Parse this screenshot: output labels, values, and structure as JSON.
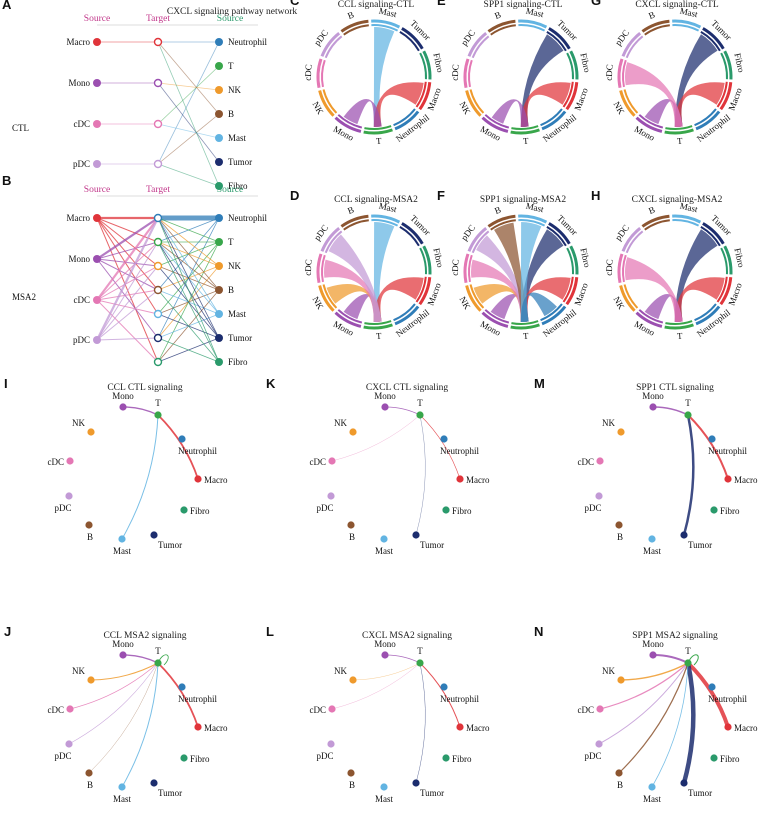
{
  "colors": {
    "Macro": "#e0343a",
    "Mono": "#9b4fb0",
    "cDC": "#e477b4",
    "pDC": "#c29ad6",
    "Neutrophil": "#2f7db8",
    "T": "#38a64a",
    "NK": "#ef9a2c",
    "B": "#8c5530",
    "Mast": "#62b4e2",
    "Tumor": "#1c2d6e",
    "Fibro": "#2a9a6b",
    "source_header": "#c2388b",
    "target_header": "#c2388b",
    "source2_header": "#2a9a6b"
  },
  "hier": {
    "title": "CXCL signaling pathway network",
    "headers": {
      "source_left": "Source",
      "target": "Target",
      "source_right": "Source"
    },
    "left_cells": [
      "Macro",
      "Mono",
      "cDC",
      "pDC"
    ],
    "right_cells": [
      "Neutrophil",
      "T",
      "NK",
      "B",
      "Mast",
      "Tumor",
      "Fibro"
    ],
    "rows": [
      {
        "letter": "A",
        "condition": "CTL"
      },
      {
        "letter": "B",
        "condition": "MSA2"
      }
    ]
  },
  "chord": {
    "order": [
      "Mast",
      "Tumor",
      "Fibro",
      "Macro",
      "Neutrophil",
      "T",
      "Mono",
      "NK",
      "cDC",
      "pDC",
      "B"
    ],
    "panels": [
      {
        "letter": "C",
        "title": "CCL signaling-CTL"
      },
      {
        "letter": "D",
        "title": "CCL signaling-MSA2"
      },
      {
        "letter": "E",
        "title": "SPP1 signaling-CTL"
      },
      {
        "letter": "F",
        "title": "SPP1 signaling-MSA2"
      },
      {
        "letter": "G",
        "title": "CXCL signaling-CTL"
      },
      {
        "letter": "H",
        "title": "CXCL signaling-MSA2"
      }
    ]
  },
  "circle": {
    "nodes": [
      "Mono",
      "T",
      "Neutrophil",
      "Macro",
      "Fibro",
      "Tumor",
      "Mast",
      "B",
      "pDC",
      "cDC",
      "NK"
    ],
    "panels": [
      {
        "letter": "I",
        "title": "CCL CTL signaling"
      },
      {
        "letter": "J",
        "title": "CCL MSA2 signaling"
      },
      {
        "letter": "K",
        "title": "CXCL CTL signaling"
      },
      {
        "letter": "L",
        "title": "CXCL MSA2 signaling"
      },
      {
        "letter": "M",
        "title": "SPP1 CTL signaling"
      },
      {
        "letter": "N",
        "title": "SPP1 MSA2 signaling"
      }
    ]
  }
}
